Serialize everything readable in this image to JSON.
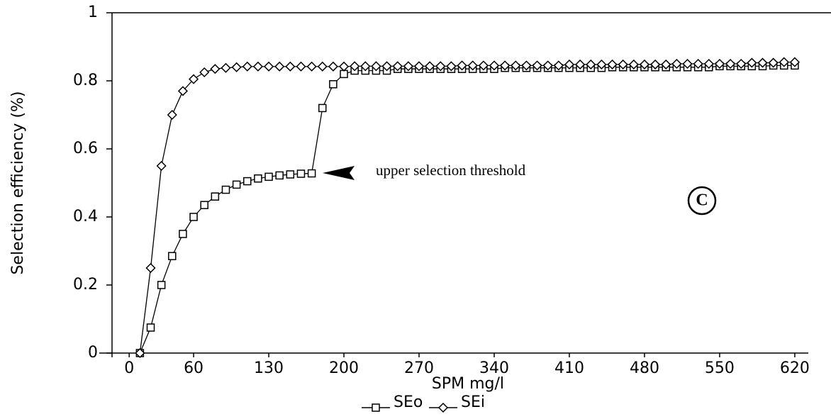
{
  "chart_data": {
    "type": "line",
    "x_label": "SPM mg/l",
    "y_label": "Selection efficiency (%)",
    "annotation": "upper selection threshold",
    "panel_label": "C",
    "x": [
      10,
      20,
      30,
      40,
      50,
      60,
      70,
      80,
      90,
      100,
      110,
      120,
      130,
      140,
      150,
      160,
      170,
      180,
      190,
      200,
      210,
      220,
      230,
      240,
      250,
      260,
      270,
      280,
      290,
      300,
      310,
      320,
      330,
      340,
      350,
      360,
      370,
      380,
      390,
      400,
      410,
      420,
      430,
      440,
      450,
      460,
      470,
      480,
      490,
      500,
      510,
      520,
      530,
      540,
      550,
      560,
      570,
      580,
      590,
      600,
      610,
      620
    ],
    "series": [
      {
        "name": "SEo",
        "color": "#000000",
        "marker": "square",
        "values": [
          0,
          0.075,
          0.2,
          0.285,
          0.35,
          0.4,
          0.435,
          0.46,
          0.48,
          0.495,
          0.505,
          0.513,
          0.518,
          0.522,
          0.525,
          0.527,
          0.528,
          0.72,
          0.79,
          0.82,
          0.83,
          0.83,
          0.83,
          0.83,
          0.835,
          0.835,
          0.835,
          0.835,
          0.835,
          0.835,
          0.835,
          0.835,
          0.835,
          0.835,
          0.838,
          0.838,
          0.838,
          0.838,
          0.838,
          0.838,
          0.838,
          0.838,
          0.838,
          0.838,
          0.84,
          0.84,
          0.84,
          0.84,
          0.84,
          0.84,
          0.84,
          0.84,
          0.84,
          0.84,
          0.843,
          0.843,
          0.843,
          0.843,
          0.843,
          0.845,
          0.845,
          0.845
        ]
      },
      {
        "name": "SEi",
        "color": "#000000",
        "marker": "diamond",
        "values": [
          0,
          0.25,
          0.55,
          0.7,
          0.77,
          0.805,
          0.825,
          0.835,
          0.838,
          0.84,
          0.842,
          0.842,
          0.842,
          0.842,
          0.842,
          0.842,
          0.842,
          0.842,
          0.842,
          0.842,
          0.843,
          0.843,
          0.843,
          0.843,
          0.843,
          0.843,
          0.843,
          0.843,
          0.843,
          0.843,
          0.845,
          0.845,
          0.845,
          0.845,
          0.845,
          0.845,
          0.845,
          0.845,
          0.845,
          0.845,
          0.848,
          0.848,
          0.848,
          0.848,
          0.848,
          0.848,
          0.848,
          0.848,
          0.848,
          0.848,
          0.85,
          0.85,
          0.85,
          0.85,
          0.85,
          0.85,
          0.85,
          0.853,
          0.853,
          0.853,
          0.855,
          0.855
        ]
      }
    ],
    "xlim": [
      -16,
      626
    ],
    "xticks": [
      0,
      60,
      130,
      200,
      270,
      340,
      410,
      480,
      550,
      620
    ],
    "ylim": [
      0,
      1
    ],
    "yticks": [
      0,
      0.2,
      0.4,
      0.6,
      0.8,
      1
    ],
    "grid": false
  }
}
